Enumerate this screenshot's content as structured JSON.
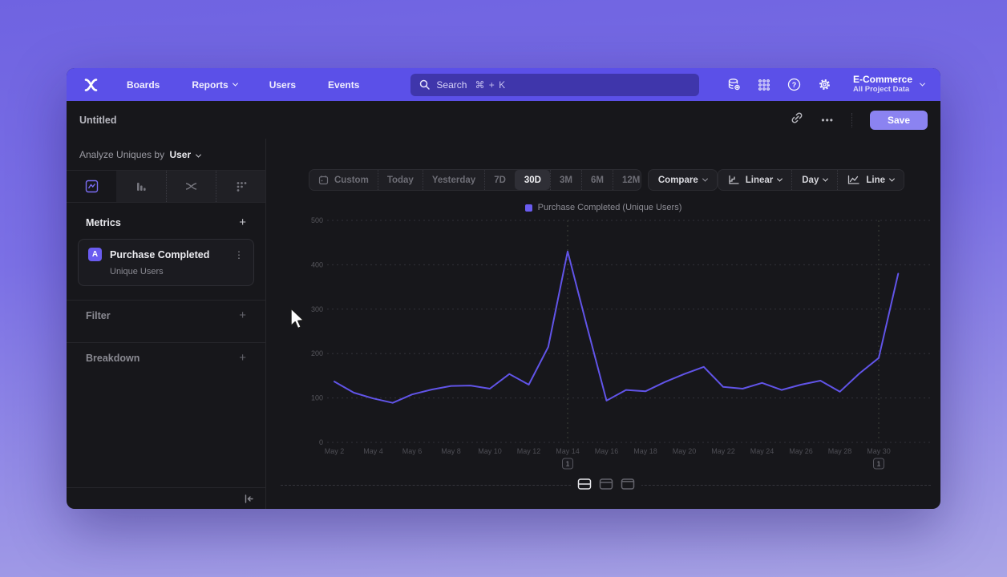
{
  "nav": {
    "items": [
      "Boards",
      "Reports",
      "Users",
      "Events"
    ],
    "search": {
      "placeholder": "Search",
      "shortcut": "⌘ + K"
    },
    "project": {
      "name": "E-Commerce",
      "scope": "All Project Data"
    }
  },
  "header": {
    "title": "Untitled",
    "more_label": "•••",
    "save_label": "Save"
  },
  "sidebar": {
    "analyze": {
      "prefix": "Analyze",
      "measurement": "Uniques",
      "connector": "by",
      "entity": "User"
    },
    "tabs": [
      "insights",
      "funnels",
      "flows",
      "retention"
    ],
    "selected_tab": "insights",
    "metrics_label": "Metrics",
    "metrics_add": "+",
    "metric_card": {
      "badge": "A",
      "event": "Purchase Completed",
      "measure": "Unique Users",
      "menu": "⋮"
    },
    "filter_label": "Filter",
    "filter_add": "+",
    "breakdown_label": "Breakdown",
    "breakdown_add": "+"
  },
  "toolbar": {
    "ranges": [
      "Custom",
      "Today",
      "Yesterday",
      "7D",
      "30D",
      "3M",
      "6M",
      "12M"
    ],
    "selected_range": "30D",
    "compare_label": "Compare",
    "scale_label": "Linear",
    "interval_label": "Day",
    "chart_type_label": "Line"
  },
  "chart_data": {
    "type": "line",
    "legend": "Purchase Completed (Unique Users)",
    "legend_position": "top-center",
    "line_color": "#6154e8",
    "ylim": [
      0,
      500
    ],
    "y_ticks": [
      0,
      100,
      200,
      300,
      400,
      500
    ],
    "grid": "dashed-horizontal",
    "x": [
      "May 2",
      "May 3",
      "May 4",
      "May 5",
      "May 6",
      "May 7",
      "May 8",
      "May 9",
      "May 10",
      "May 11",
      "May 12",
      "May 13",
      "May 14",
      "May 15",
      "May 16",
      "May 17",
      "May 18",
      "May 19",
      "May 20",
      "May 21",
      "May 22",
      "May 23",
      "May 24",
      "May 25",
      "May 26",
      "May 27",
      "May 28",
      "May 29",
      "May 30",
      "May 31"
    ],
    "values": [
      137,
      112,
      99,
      89,
      108,
      119,
      127,
      128,
      121,
      154,
      130,
      215,
      430,
      260,
      94,
      118,
      115,
      136,
      154,
      170,
      125,
      121,
      134,
      118,
      130,
      139,
      114,
      155,
      190,
      380
    ],
    "x_tick_every": 2,
    "annotations": [
      {
        "label": "1",
        "date": "May 14",
        "index": 12
      },
      {
        "label": "1",
        "date": "May 30",
        "index": 28
      }
    ]
  }
}
